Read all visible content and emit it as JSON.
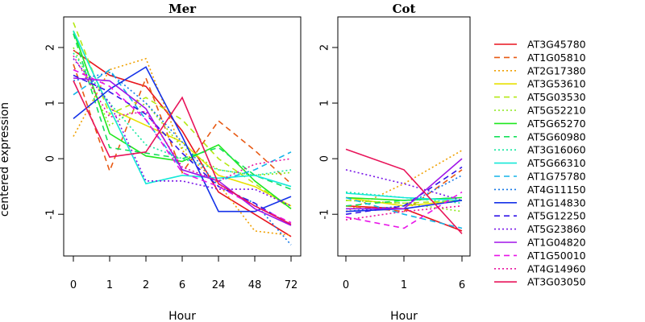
{
  "chart_data": {
    "type": "line",
    "ylabel": "centered expression",
    "ylim": [
      -1.75,
      2.55
    ],
    "y_ticks": [
      -1,
      0,
      1,
      2
    ],
    "grid": false,
    "legend_position": "right",
    "panels": [
      {
        "title": "Mer",
        "xlabel": "Hour",
        "categories": [
          "0",
          "1",
          "2",
          "6",
          "24",
          "48",
          "72"
        ],
        "series": [
          {
            "name": "AT3G45780",
            "values": [
              1.95,
              1.5,
              1.3,
              0.5,
              -0.6,
              -1.0,
              -1.4
            ]
          },
          {
            "name": "AT1G05810",
            "values": [
              1.7,
              -0.22,
              1.45,
              -0.25,
              0.68,
              0.15,
              -0.45
            ]
          },
          {
            "name": "AT2G17380",
            "values": [
              0.4,
              1.6,
              1.8,
              0.15,
              -0.45,
              -1.3,
              -1.38
            ]
          },
          {
            "name": "AT3G53610",
            "values": [
              2.3,
              0.9,
              0.6,
              0.3,
              -0.3,
              -0.5,
              -0.85
            ]
          },
          {
            "name": "AT5G03530",
            "values": [
              2.45,
              0.8,
              1.1,
              0.7,
              0.0,
              -0.45,
              -0.9
            ]
          },
          {
            "name": "AT5G52210",
            "values": [
              2.0,
              0.6,
              1.0,
              0.2,
              -0.2,
              -0.3,
              -0.25
            ]
          },
          {
            "name": "AT5G65270",
            "values": [
              2.3,
              0.45,
              0.05,
              -0.05,
              0.25,
              -0.4,
              -0.9
            ]
          },
          {
            "name": "AT5G60980",
            "values": [
              2.25,
              0.2,
              0.1,
              0.0,
              0.2,
              -0.3,
              -0.55
            ]
          },
          {
            "name": "AT3G16060",
            "values": [
              1.9,
              1.0,
              0.25,
              0.0,
              -0.2,
              -0.3,
              -0.2
            ]
          },
          {
            "name": "AT5G66310",
            "values": [
              2.3,
              0.9,
              -0.45,
              -0.3,
              -0.35,
              -0.3,
              -0.5
            ]
          },
          {
            "name": "AT1G75780",
            "values": [
              1.15,
              1.6,
              0.7,
              -0.2,
              -0.4,
              -0.2,
              0.12
            ]
          },
          {
            "name": "AT4G11150",
            "values": [
              1.4,
              1.55,
              1.0,
              0.3,
              -0.5,
              -0.8,
              -1.55
            ]
          },
          {
            "name": "AT1G14830",
            "values": [
              0.72,
              1.25,
              1.65,
              0.4,
              -0.95,
              -0.95,
              -0.68
            ]
          },
          {
            "name": "AT5G12250",
            "values": [
              1.5,
              1.2,
              0.8,
              0.1,
              -0.5,
              -0.8,
              -1.2
            ]
          },
          {
            "name": "AT5G23860",
            "values": [
              1.8,
              1.0,
              -0.4,
              -0.4,
              -0.55,
              -0.55,
              -0.85
            ]
          },
          {
            "name": "AT1G04820",
            "values": [
              1.45,
              1.4,
              0.9,
              -0.2,
              -0.4,
              -0.9,
              -1.2
            ]
          },
          {
            "name": "AT1G50010",
            "values": [
              1.6,
              1.3,
              0.7,
              -0.25,
              -0.5,
              -0.85,
              -1.15
            ]
          },
          {
            "name": "AT4G14960",
            "values": [
              1.85,
              0.75,
              0.85,
              -0.15,
              -0.4,
              -0.1,
              0.0
            ]
          },
          {
            "name": "AT3G03050",
            "values": [
              1.4,
              0.03,
              0.12,
              1.1,
              -0.45,
              -0.85,
              -1.18
            ]
          }
        ]
      },
      {
        "title": "Cot",
        "xlabel": "Hour",
        "categories": [
          "0",
          "1",
          "6"
        ],
        "series": [
          {
            "name": "AT3G45780",
            "values": [
              -0.85,
              -0.9,
              -1.3
            ]
          },
          {
            "name": "AT1G05810",
            "values": [
              -0.85,
              -0.95,
              -0.2
            ]
          },
          {
            "name": "AT2G17380",
            "values": [
              -0.95,
              -0.45,
              0.15
            ]
          },
          {
            "name": "AT3G53610",
            "values": [
              -0.7,
              -0.85,
              -0.75
            ]
          },
          {
            "name": "AT5G03530",
            "values": [
              -0.75,
              -0.8,
              -0.75
            ]
          },
          {
            "name": "AT5G52210",
            "values": [
              -0.75,
              -0.8,
              -0.95
            ]
          },
          {
            "name": "AT5G65270",
            "values": [
              -0.7,
              -0.75,
              -0.7
            ]
          },
          {
            "name": "AT5G60980",
            "values": [
              -0.85,
              -0.75,
              -0.7
            ]
          },
          {
            "name": "AT3G16060",
            "values": [
              -0.6,
              -0.7,
              -0.8
            ]
          },
          {
            "name": "AT5G66310",
            "values": [
              -0.62,
              -0.7,
              -0.75
            ]
          },
          {
            "name": "AT1G75780",
            "values": [
              -0.7,
              -1.0,
              -1.25
            ]
          },
          {
            "name": "AT4G11150",
            "values": [
              -0.95,
              -0.85,
              -0.3
            ]
          },
          {
            "name": "AT1G14830",
            "values": [
              -0.95,
              -0.9,
              -0.75
            ]
          },
          {
            "name": "AT5G12250",
            "values": [
              -1.0,
              -0.85,
              -0.15
            ]
          },
          {
            "name": "AT5G23860",
            "values": [
              -0.2,
              -0.45,
              -0.75
            ]
          },
          {
            "name": "AT1G04820",
            "values": [
              -0.9,
              -0.9,
              0.0
            ]
          },
          {
            "name": "AT1G50010",
            "values": [
              -1.05,
              -1.25,
              -0.6
            ]
          },
          {
            "name": "AT4G14960",
            "values": [
              -1.1,
              -0.95,
              -0.85
            ]
          },
          {
            "name": "AT3G03050",
            "values": [
              0.17,
              -0.2,
              -1.35
            ]
          }
        ]
      }
    ],
    "styles": [
      {
        "color": "#e8141e",
        "dash": "solid"
      },
      {
        "color": "#e85a14",
        "dash": "long"
      },
      {
        "color": "#f0a000",
        "dash": "dot"
      },
      {
        "color": "#e8e000",
        "dash": "solid"
      },
      {
        "color": "#b4e814",
        "dash": "long"
      },
      {
        "color": "#8ce81a",
        "dash": "dot"
      },
      {
        "color": "#1ee81e",
        "dash": "solid"
      },
      {
        "color": "#14e05a",
        "dash": "long"
      },
      {
        "color": "#14e8a0",
        "dash": "dot"
      },
      {
        "color": "#14e8d8",
        "dash": "solid"
      },
      {
        "color": "#14b4e8",
        "dash": "long"
      },
      {
        "color": "#1478e8",
        "dash": "dot"
      },
      {
        "color": "#1432e8",
        "dash": "solid"
      },
      {
        "color": "#3214e8",
        "dash": "long"
      },
      {
        "color": "#7814e8",
        "dash": "dot"
      },
      {
        "color": "#a014e8",
        "dash": "solid"
      },
      {
        "color": "#e814e8",
        "dash": "long"
      },
      {
        "color": "#e814a0",
        "dash": "dot"
      },
      {
        "color": "#e8145a",
        "dash": "solid"
      }
    ]
  }
}
